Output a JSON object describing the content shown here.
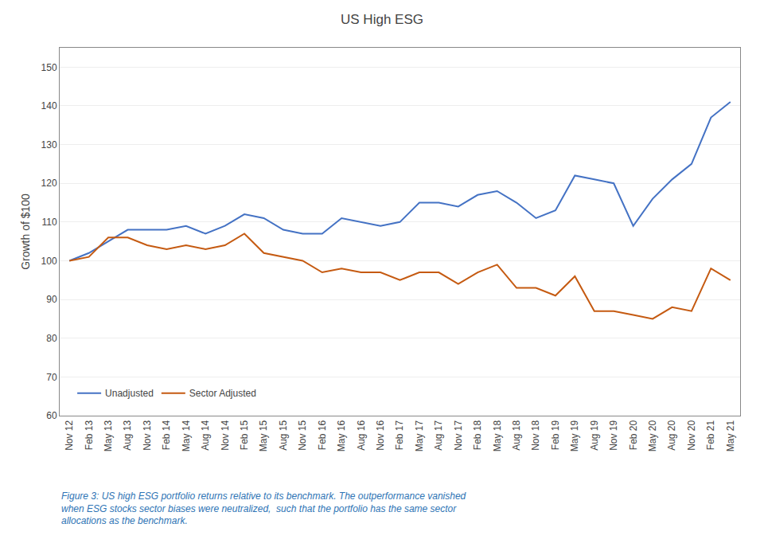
{
  "chart_data": {
    "type": "line",
    "title": "US High ESG",
    "ylabel": "Growth of $100",
    "categories": [
      "Nov 12",
      "Feb 13",
      "May 13",
      "Aug 13",
      "Nov 13",
      "Feb 14",
      "May 14",
      "Aug 14",
      "Nov 14",
      "Feb 15",
      "May 15",
      "Aug 15",
      "Nov 15",
      "Feb 16",
      "May 16",
      "Aug 16",
      "Nov 16",
      "Feb 17",
      "May 17",
      "Aug 17",
      "Nov 17",
      "Feb 18",
      "May 18",
      "Aug 18",
      "Nov 18",
      "Feb 19",
      "May 19",
      "Aug 19",
      "Nov 19",
      "Feb 20",
      "May 20",
      "Aug 20",
      "Nov 20",
      "Feb 21",
      "May 21"
    ],
    "series": [
      {
        "name": "Unadjusted",
        "color": "#4472C4",
        "values": [
          100,
          102,
          105,
          108,
          108,
          108,
          109,
          107,
          109,
          112,
          111,
          108,
          107,
          107,
          111,
          110,
          109,
          110,
          115,
          115,
          114,
          117,
          118,
          115,
          111,
          113,
          122,
          121,
          120,
          109,
          116,
          121,
          125,
          137,
          141
        ]
      },
      {
        "name": "Sector Adjusted",
        "color": "#C55A11",
        "values": [
          100,
          101,
          106,
          106,
          104,
          103,
          104,
          103,
          104,
          107,
          102,
          101,
          100,
          97,
          98,
          97,
          97,
          95,
          97,
          97,
          94,
          97,
          99,
          93,
          93,
          91,
          96,
          87,
          87,
          86,
          85,
          88,
          87,
          98,
          95
        ]
      }
    ],
    "ylim": [
      60,
      155
    ],
    "yticks": [
      60,
      70,
      80,
      90,
      100,
      110,
      120,
      130,
      140,
      150
    ],
    "grid": true,
    "legend": "lower left",
    "annotations": [
      {
        "text": "Figure 3: US high ESG portfolio returns relative to its benchmark. The outperformance vanished\nwhen ESG stocks sector biases were neutralized,  such that the portfolio has the same sector\nallocations as the benchmark.",
        "color": "#2E74B5"
      }
    ]
  }
}
